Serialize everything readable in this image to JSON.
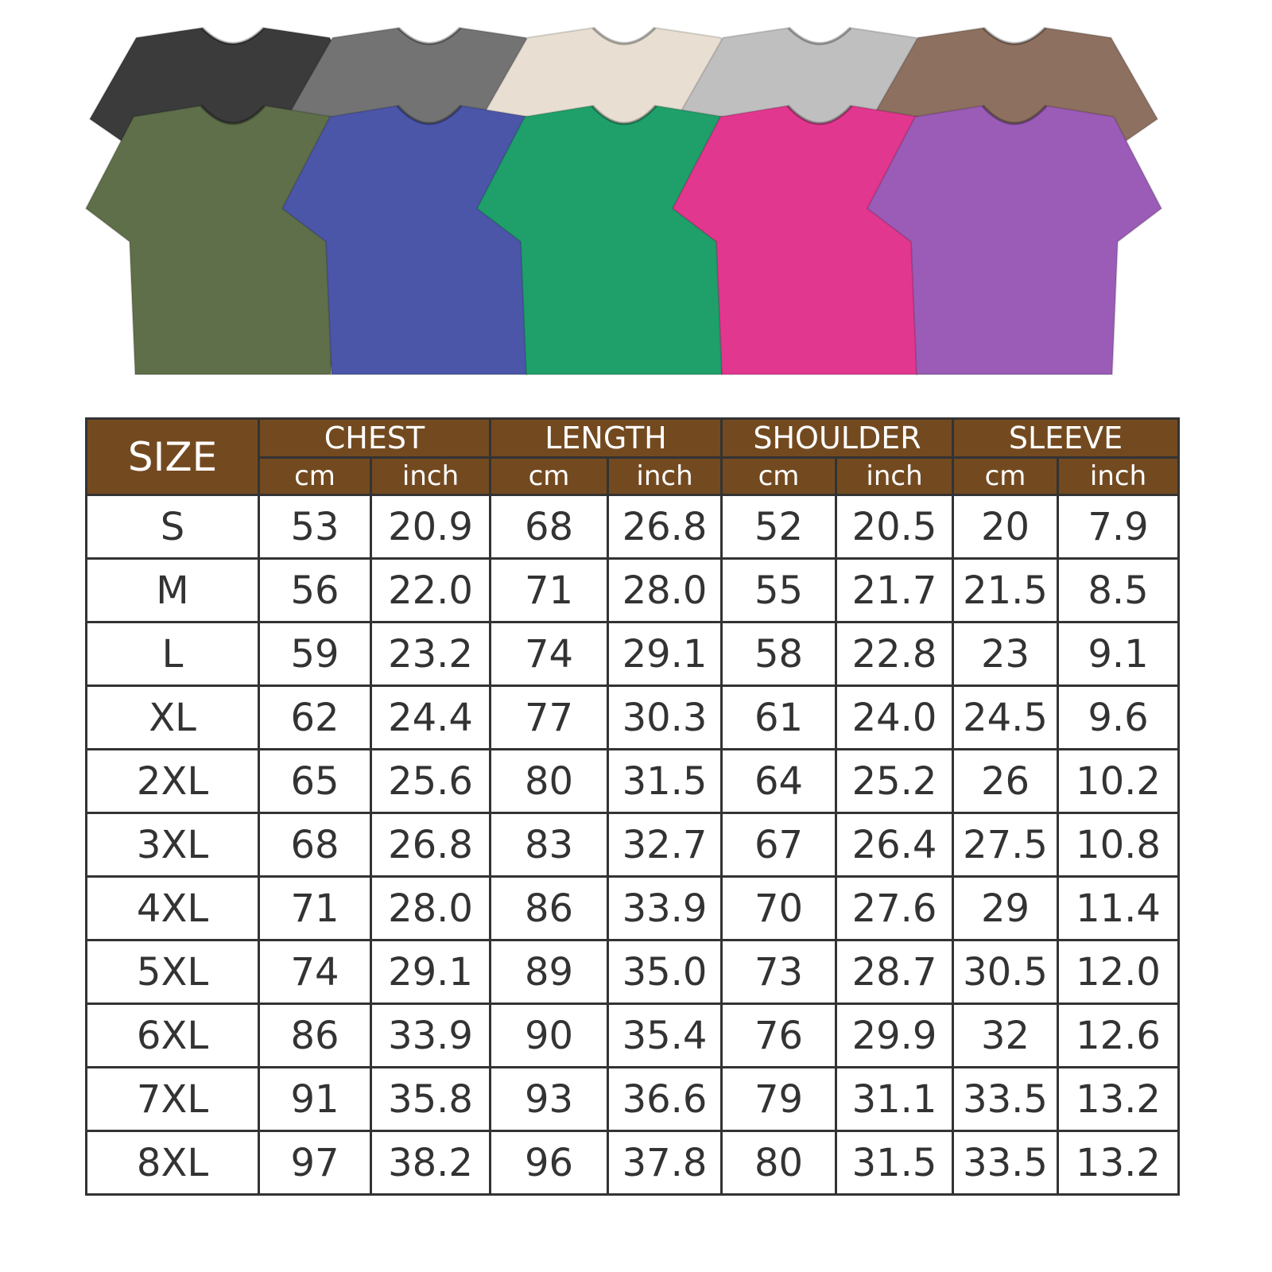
{
  "shirt_colors": {
    "back_row": [
      "#3b3b3b",
      "#737373",
      "#e8dfd2",
      "#bfbfbf",
      "#8d705f"
    ],
    "front_row": [
      "#5f6f4a",
      "#4b56a9",
      "#1fa06b",
      "#e2378f",
      "#9b5cb8"
    ]
  },
  "header_color": "#734a20",
  "table": {
    "size_label": "SIZE",
    "groups": [
      "CHEST",
      "LENGTH",
      "SHOULDER",
      "SLEEVE"
    ],
    "units": [
      "cm",
      "inch"
    ],
    "rows": [
      [
        "S",
        "53",
        "20.9",
        "68",
        "26.8",
        "52",
        "20.5",
        "20",
        "7.9"
      ],
      [
        "M",
        "56",
        "22.0",
        "71",
        "28.0",
        "55",
        "21.7",
        "21.5",
        "8.5"
      ],
      [
        "L",
        "59",
        "23.2",
        "74",
        "29.1",
        "58",
        "22.8",
        "23",
        "9.1"
      ],
      [
        "XL",
        "62",
        "24.4",
        "77",
        "30.3",
        "61",
        "24.0",
        "24.5",
        "9.6"
      ],
      [
        "2XL",
        "65",
        "25.6",
        "80",
        "31.5",
        "64",
        "25.2",
        "26",
        "10.2"
      ],
      [
        "3XL",
        "68",
        "26.8",
        "83",
        "32.7",
        "67",
        "26.4",
        "27.5",
        "10.8"
      ],
      [
        "4XL",
        "71",
        "28.0",
        "86",
        "33.9",
        "70",
        "27.6",
        "29",
        "11.4"
      ],
      [
        "5XL",
        "74",
        "29.1",
        "89",
        "35.0",
        "73",
        "28.7",
        "30.5",
        "12.0"
      ],
      [
        "6XL",
        "86",
        "33.9",
        "90",
        "35.4",
        "76",
        "29.9",
        "32",
        "12.6"
      ],
      [
        "7XL",
        "91",
        "35.8",
        "93",
        "36.6",
        "79",
        "31.1",
        "33.5",
        "13.2"
      ],
      [
        "8XL",
        "97",
        "38.2",
        "96",
        "37.8",
        "80",
        "31.5",
        "33.5",
        "13.2"
      ]
    ]
  }
}
